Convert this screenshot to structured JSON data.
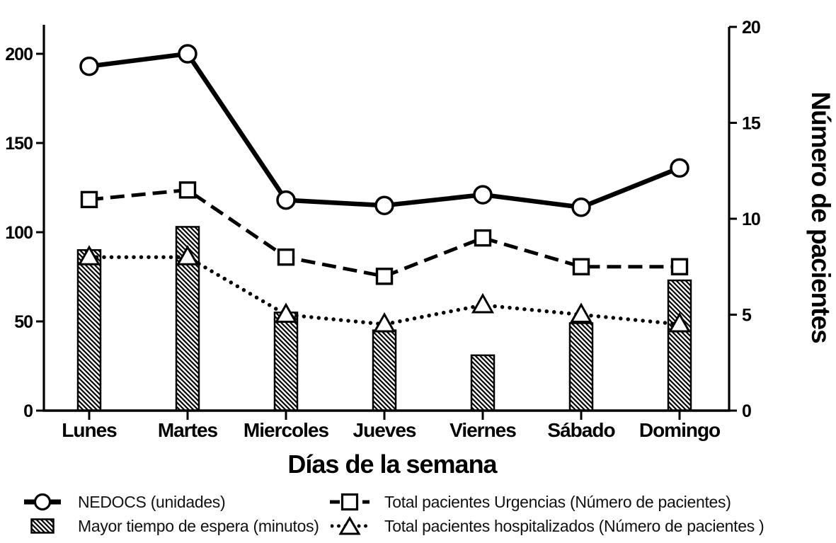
{
  "figure": {
    "background": "#ffffff",
    "ink_color": "#000000"
  },
  "chart_data": {
    "type": "combo-bar-line",
    "categories": [
      "Lunes",
      "Martes",
      "Miercoles",
      "Jueves",
      "Viernes",
      "Sábado",
      "Domingo"
    ],
    "xlabel": "Días de la semana",
    "left_axis": {
      "label": "",
      "ticks": [
        0,
        50,
        100,
        150,
        200
      ],
      "ylim": [
        0,
        215
      ]
    },
    "right_axis": {
      "label": "Número de pacientes",
      "ticks": [
        0,
        5,
        10,
        15,
        20
      ],
      "ylim": [
        0,
        20
      ]
    },
    "grid": false,
    "legend_position": "bottom",
    "series": [
      {
        "name": "Mayor tiempo de espera (minutos)",
        "type": "bar",
        "axis": "left",
        "fill": "diagonal-hatch",
        "values": [
          90,
          103,
          55,
          45,
          31,
          49,
          73
        ]
      },
      {
        "name": "Total pacientes hospitalizados (Número de pacientes )",
        "type": "line",
        "axis": "right",
        "line_style": "dotted",
        "marker": "triangle",
        "values": [
          8,
          8,
          5,
          4.5,
          5.5,
          5,
          4.5
        ]
      },
      {
        "name": "Total pacientes Urgencias  (Número de pacientes)",
        "type": "line",
        "axis": "right",
        "line_style": "dashed",
        "marker": "square",
        "values": [
          11,
          11.5,
          8,
          7,
          9,
          7.5,
          7.5
        ]
      },
      {
        "name": "NEDOCS (unidades)",
        "type": "line",
        "axis": "left",
        "line_style": "solid",
        "marker": "circle",
        "values": [
          193,
          200,
          118,
          115,
          121,
          114,
          136
        ]
      }
    ]
  },
  "legend": {
    "column1": [
      {
        "label": "NEDOCS (unidades)",
        "marker": "circle-solid-line"
      },
      {
        "label": "Mayor tiempo de espera (minutos)",
        "marker": "hatched-bar"
      }
    ],
    "column2": [
      {
        "label": "Total pacientes Urgencias  (Número de pacientes)",
        "marker": "square-dashed-line"
      },
      {
        "label": "Total pacientes hospitalizados (Número de pacientes )",
        "marker": "triangle-dotted-line"
      }
    ]
  }
}
